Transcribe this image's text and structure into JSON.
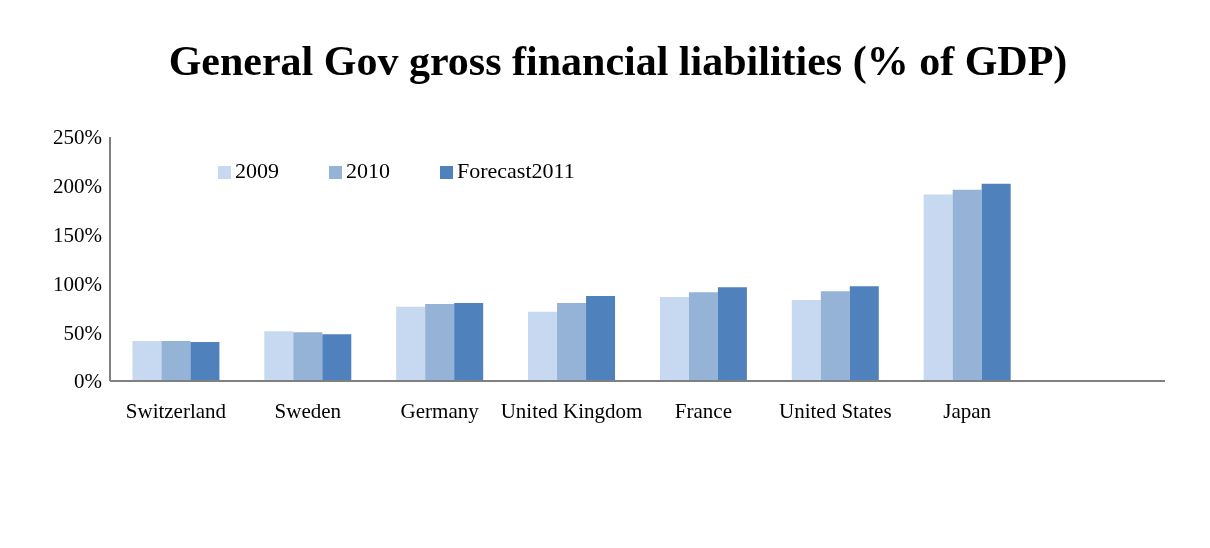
{
  "chart_data": {
    "type": "bar",
    "title": "General Gov gross financial liabilities (% of GDP)",
    "categories": [
      "Switzerland",
      "Sweden",
      "Germany",
      "United Kingdom",
      "France",
      "United States",
      "Japan",
      null
    ],
    "series": [
      {
        "name": "2009",
        "color": "#c6d9f0",
        "values": [
          41,
          51,
          76,
          71,
          86,
          83,
          191,
          null
        ]
      },
      {
        "name": "2010",
        "color": "#95b3d7",
        "values": [
          41,
          50,
          79,
          80,
          91,
          92,
          196,
          null
        ]
      },
      {
        "name": "Forecast2011",
        "color": "#4f81bd",
        "values": [
          40,
          48,
          80,
          87,
          96,
          97,
          202,
          null
        ]
      }
    ],
    "ylim": [
      0,
      250
    ],
    "yticks": [
      {
        "value": 0,
        "label": "0%"
      },
      {
        "value": 50,
        "label": "50%"
      },
      {
        "value": 100,
        "label": "100%"
      },
      {
        "value": 150,
        "label": "150%"
      },
      {
        "value": 200,
        "label": "200%"
      },
      {
        "value": 250,
        "label": "250%"
      }
    ],
    "grid": false,
    "legend": "top left"
  }
}
